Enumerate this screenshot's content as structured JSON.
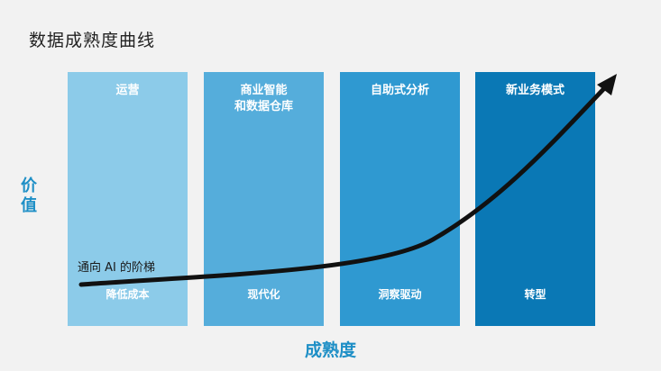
{
  "title": "数据成熟度曲线",
  "y_axis_label": "价值",
  "x_axis_label": "成熟度",
  "curve_label": "通向 AI 的阶梯",
  "accent_color": "#1e8fc6",
  "stages": [
    {
      "label": "运营",
      "outcome": "降低成本",
      "color": "#8ccbe9"
    },
    {
      "label": "商业智能\n和数据仓库",
      "outcome": "现代化",
      "color": "#55addb"
    },
    {
      "label": "自助式分析",
      "outcome": "洞察驱动",
      "color": "#2f99d1"
    },
    {
      "label": "新业务模式",
      "outcome": "转型",
      "color": "#0a78b5"
    }
  ],
  "curve_color": "#111111",
  "arrow_icon": "arrow-head-icon"
}
